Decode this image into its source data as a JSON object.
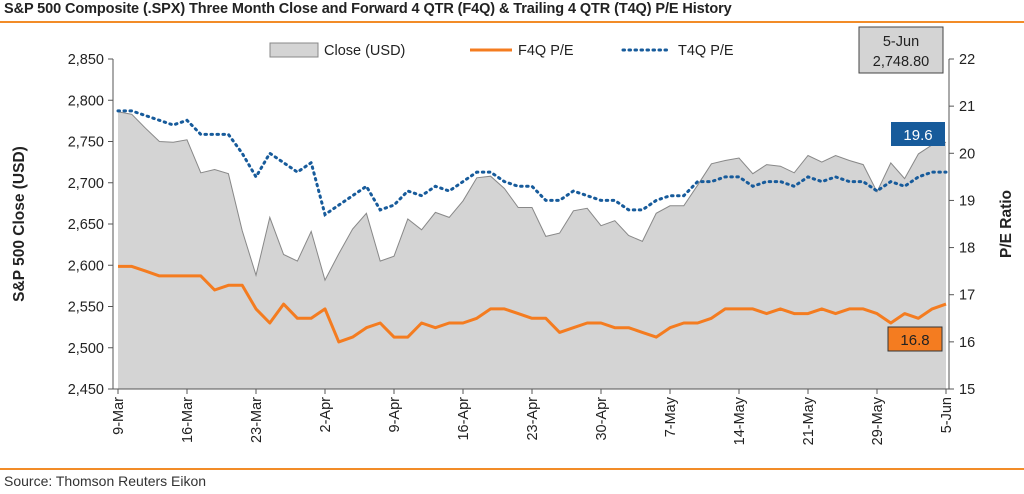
{
  "title": "S&P 500 Composite (.SPX) Three Month Close and Forward 4 QTR (F4Q) & Trailing 4 QTR (T4Q) P/E History",
  "source": "Source: Thomson Reuters Eikon",
  "colors": {
    "close_fill": "#d4d4d4",
    "close_stroke": "#888888",
    "f4q": "#f47c20",
    "t4q": "#175b9b",
    "rule": "#f28c28"
  },
  "chart_data": {
    "type": "area",
    "x_tick_labels": [
      "9-Mar",
      "16-Mar",
      "23-Mar",
      "2-Apr",
      "9-Apr",
      "16-Apr",
      "23-Apr",
      "30-Apr",
      "7-May",
      "14-May",
      "21-May",
      "29-May",
      "5-Jun"
    ],
    "x_tick_positions": [
      0,
      5,
      10,
      15,
      20,
      25,
      30,
      35,
      40,
      45,
      50,
      55,
      60
    ],
    "left_axis": {
      "label": "S&P 500 Close (USD)",
      "range": [
        2450,
        2850
      ],
      "ticks": [
        2450,
        2500,
        2550,
        2600,
        2650,
        2700,
        2750,
        2800,
        2850
      ],
      "tick_labels": [
        "2,450",
        "2,500",
        "2,550",
        "2,600",
        "2,650",
        "2,700",
        "2,750",
        "2,800",
        "2,850"
      ]
    },
    "right_axis": {
      "label": "P/E Ratio",
      "range": [
        15,
        22
      ],
      "ticks": [
        15,
        16,
        17,
        18,
        19,
        20,
        21,
        22
      ]
    },
    "legend": {
      "placement": "top",
      "entries": [
        "Close (USD)",
        "F4Q P/E",
        "T4Q P/E"
      ]
    },
    "series": [
      {
        "name": "Close (USD)",
        "kind": "area",
        "axis": "left",
        "values": [
          2786,
          2783,
          2766,
          2750,
          2749,
          2752,
          2712,
          2716,
          2711,
          2642,
          2588,
          2658,
          2613,
          2605,
          2641,
          2582,
          2614,
          2644,
          2663,
          2605,
          2611,
          2656,
          2643,
          2664,
          2658,
          2678,
          2706,
          2708,
          2693,
          2670,
          2670,
          2635,
          2639,
          2666,
          2669,
          2648,
          2654,
          2636,
          2629,
          2663,
          2672,
          2672,
          2697,
          2723,
          2727,
          2730,
          2711,
          2722,
          2720,
          2712,
          2733,
          2725,
          2733,
          2727,
          2722,
          2689,
          2724,
          2705,
          2735,
          2746,
          2749
        ]
      },
      {
        "name": "F4Q P/E",
        "kind": "line",
        "axis": "right",
        "values": [
          17.6,
          17.6,
          17.5,
          17.4,
          17.4,
          17.4,
          17.4,
          17.1,
          17.2,
          17.2,
          16.7,
          16.4,
          16.8,
          16.5,
          16.5,
          16.7,
          16.0,
          16.1,
          16.3,
          16.4,
          16.1,
          16.1,
          16.4,
          16.3,
          16.4,
          16.4,
          16.5,
          16.7,
          16.7,
          16.6,
          16.5,
          16.5,
          16.2,
          16.3,
          16.4,
          16.4,
          16.3,
          16.3,
          16.2,
          16.1,
          16.3,
          16.4,
          16.4,
          16.5,
          16.7,
          16.7,
          16.7,
          16.6,
          16.7,
          16.6,
          16.6,
          16.7,
          16.6,
          16.7,
          16.7,
          16.6,
          16.4,
          16.6,
          16.5,
          16.7,
          16.8
        ]
      },
      {
        "name": "T4Q P/E",
        "kind": "line",
        "axis": "right",
        "values": [
          20.9,
          20.9,
          20.8,
          20.7,
          20.6,
          20.7,
          20.4,
          20.4,
          20.4,
          20.0,
          19.5,
          20.0,
          19.8,
          19.6,
          19.8,
          18.7,
          18.9,
          19.1,
          19.3,
          18.8,
          18.9,
          19.2,
          19.1,
          19.3,
          19.2,
          19.4,
          19.6,
          19.6,
          19.4,
          19.3,
          19.3,
          19.0,
          19.0,
          19.2,
          19.1,
          19.0,
          19.0,
          18.8,
          18.8,
          19.0,
          19.1,
          19.1,
          19.4,
          19.4,
          19.5,
          19.5,
          19.3,
          19.4,
          19.4,
          19.3,
          19.5,
          19.4,
          19.5,
          19.4,
          19.4,
          19.2,
          19.4,
          19.3,
          19.5,
          19.6,
          19.6
        ]
      }
    ],
    "annotations": {
      "date_box": {
        "date": "5-Jun",
        "value": "2,748.80"
      },
      "t4q_last": "19.6",
      "f4q_last": "16.8"
    },
    "grid": false
  }
}
